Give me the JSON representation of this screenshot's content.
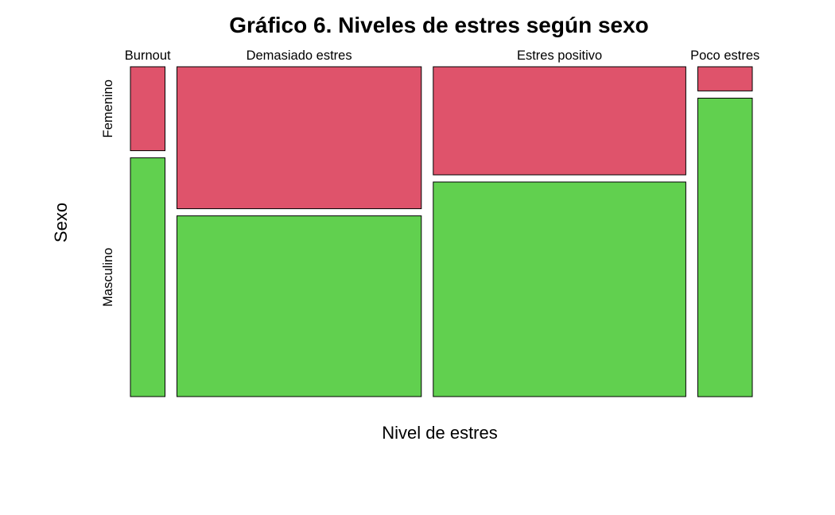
{
  "chart_data": {
    "type": "mosaic",
    "title": "Gráfico 6. Niveles de estres según sexo",
    "xlabel": "Nivel de estres",
    "ylabel": "Sexo",
    "x_categories": [
      "Burnout",
      "Demasiado estres",
      "Estres positivo",
      "Poco estres"
    ],
    "y_categories": [
      "Femenino",
      "Masculino"
    ],
    "column_share": [
      0.059,
      0.417,
      0.431,
      0.093
    ],
    "series": [
      {
        "name": "Femenino",
        "color": "#DF536B",
        "values": [
          0.26,
          0.44,
          0.335,
          0.075
        ]
      },
      {
        "name": "Masculino",
        "color": "#61D04F",
        "values": [
          0.74,
          0.56,
          0.665,
          0.925
        ]
      }
    ],
    "ylim": [
      0,
      1
    ],
    "legend": "none",
    "grid": false
  }
}
